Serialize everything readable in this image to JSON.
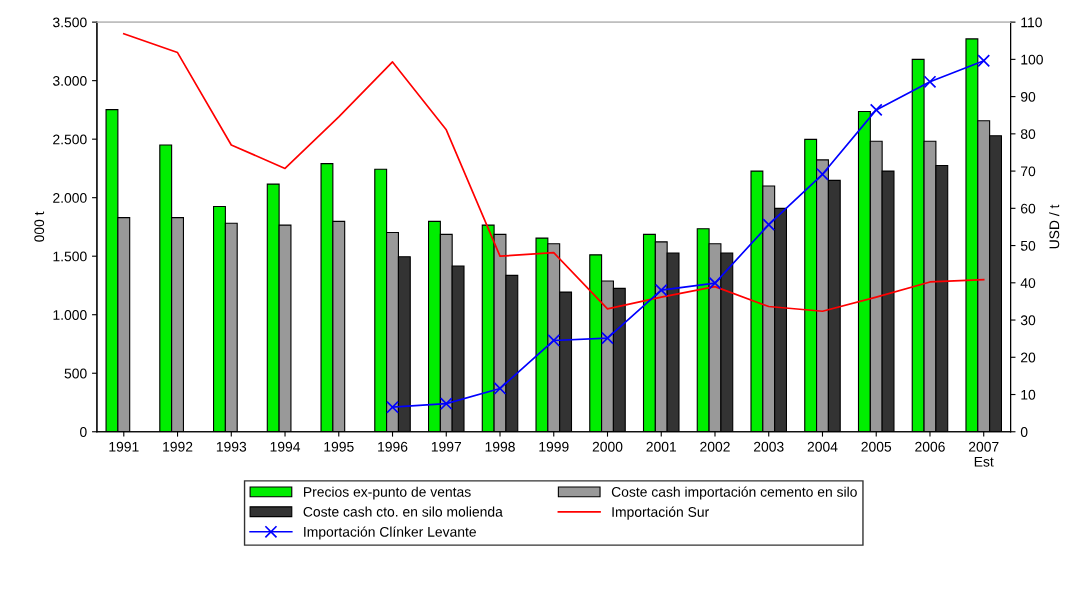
{
  "chart_data": {
    "type": "bar",
    "ylabel": "000 t",
    "y2label": "USD / t",
    "categories": [
      "1991",
      "1992",
      "1993",
      "1994",
      "1995",
      "1996",
      "1997",
      "1998",
      "1999",
      "2000",
      "2001",
      "2002",
      "2003",
      "2004",
      "2005",
      "2006",
      "2007\nEst"
    ],
    "series": [
      {
        "name": "Precios ex-punto de ventas",
        "axis": "y2",
        "color": "#00ee00",
        "values": [
          86.5,
          77,
          60.5,
          66.5,
          72,
          70.5,
          56.5,
          55.5,
          52,
          47.5,
          53,
          54.5,
          70,
          78.5,
          86,
          100,
          105.5
        ]
      },
      {
        "name": "Coste cash importación cemento en silo",
        "axis": "y2",
        "color": "#999999",
        "values": [
          57.5,
          57.5,
          56,
          55.5,
          56.5,
          53.5,
          53,
          53,
          50.5,
          40.5,
          51,
          50.5,
          66,
          73,
          78,
          78,
          83.5
        ]
      },
      {
        "name": "Coste cash cto. en silo molienda",
        "axis": "y2",
        "color": "#333333",
        "values": [
          null,
          null,
          null,
          null,
          null,
          47,
          44.5,
          42,
          37.5,
          38.5,
          48,
          48,
          60,
          67.5,
          70,
          71.5,
          79.5
        ]
      },
      {
        "name": "Importación Sur",
        "type": "line",
        "axis": "y",
        "color": "#ff0000",
        "values": [
          3400,
          3240,
          2450,
          2250,
          2690,
          3160,
          2580,
          1500,
          1530,
          1050,
          1150,
          1240,
          1070,
          1030,
          1150,
          1280,
          1300
        ]
      },
      {
        "name": "Importación Clínker Levante",
        "type": "line",
        "axis": "y",
        "color": "#0000ff",
        "marker": "cross",
        "values": [
          null,
          null,
          null,
          null,
          null,
          210,
          240,
          370,
          780,
          800,
          1210,
          1270,
          1770,
          2200,
          2750,
          2990,
          3170
        ]
      }
    ],
    "ylim": [
      0,
      3500
    ],
    "yticks": [
      {
        "value": 0,
        "label": "0"
      },
      {
        "value": 500,
        "label": "500"
      },
      {
        "value": 1000,
        "label": "1.000"
      },
      {
        "value": 1500,
        "label": "1.500"
      },
      {
        "value": 2000,
        "label": "2.000"
      },
      {
        "value": 2500,
        "label": "2.500"
      },
      {
        "value": 3000,
        "label": "3.000"
      },
      {
        "value": 3500,
        "label": "3.500"
      }
    ],
    "y2lim": [
      0,
      110
    ],
    "y2ticks": [
      0,
      10,
      20,
      30,
      40,
      50,
      60,
      70,
      80,
      90,
      100,
      110
    ],
    "grid": false,
    "legend": "bottom"
  }
}
